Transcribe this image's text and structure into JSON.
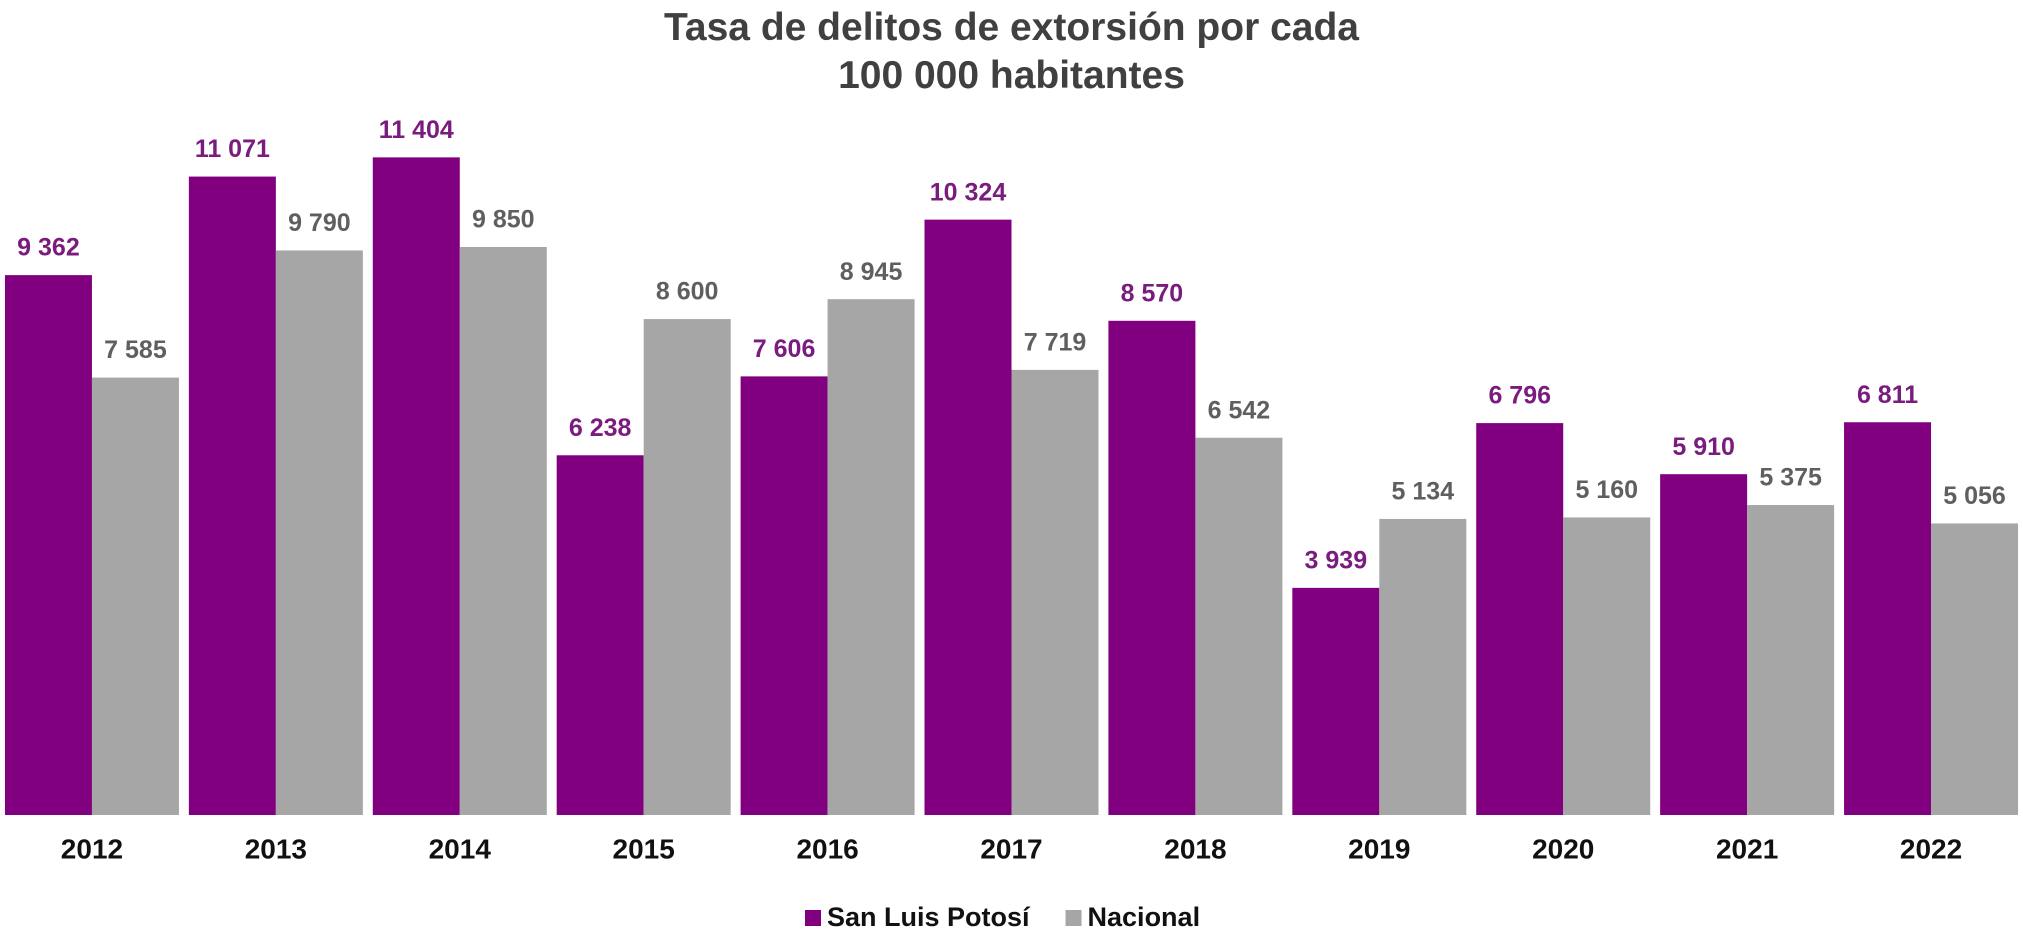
{
  "chart_data": {
    "type": "bar",
    "title": "Tasa de delitos de extorsión por cada 100 000 habitantes",
    "categories": [
      "2012",
      "2013",
      "2014",
      "2015",
      "2016",
      "2017",
      "2018",
      "2019",
      "2020",
      "2021",
      "2022"
    ],
    "series": [
      {
        "name": "San Luis Potosí",
        "color": "#800080",
        "label_color": "#7a1b7e",
        "values": [
          9362,
          11071,
          11404,
          6238,
          7606,
          10324,
          8570,
          3939,
          6796,
          5910,
          6811
        ],
        "value_labels": [
          "9 362",
          "11 071",
          "11 404",
          "6 238",
          "7 606",
          "10 324",
          "8 570",
          "3 939",
          "6 796",
          "5 910",
          "6 811"
        ]
      },
      {
        "name": "Nacional",
        "color": "#a6a6a6",
        "label_color": "#5f5f5f",
        "values": [
          7585,
          9790,
          9850,
          8600,
          8945,
          7719,
          6542,
          5134,
          5160,
          5375,
          5056
        ],
        "value_labels": [
          "7 585",
          "9 790",
          "9 850",
          "8 600",
          "8 945",
          "7 719",
          "6 542",
          "5 134",
          "5 160",
          "5 375",
          "5 056"
        ]
      }
    ],
    "ylim": [
      0,
      12000
    ],
    "legend": "bottom"
  }
}
